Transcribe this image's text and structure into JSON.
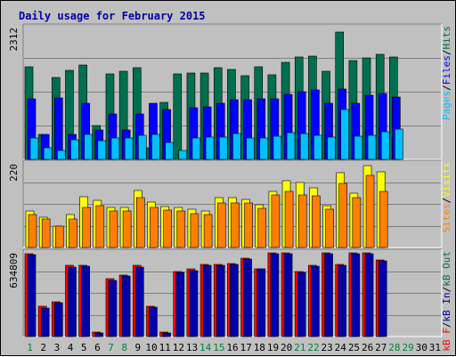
{
  "colors": {
    "background": "#c0c0c0",
    "title": "#0000aa",
    "hits": "#006f4f",
    "files": "#0000ff",
    "pages": "#00c0ff",
    "visits": "#ffff00",
    "sites": "#ff8000",
    "kbin": "#006f4f",
    "kbout": "#0000aa",
    "kbf": "#ff0000",
    "weekday_label": "#000000",
    "weekend_label": "#00803f"
  },
  "title": "Daily usage for February 2015",
  "panels": {
    "hits": {
      "max_label": "2312",
      "legend": [
        {
          "text": "Pages",
          "color": "#00c0ff"
        },
        {
          "text": "/",
          "color": "#000000"
        },
        {
          "text": "Files",
          "color": "#0000ff"
        },
        {
          "text": "/",
          "color": "#000000"
        },
        {
          "text": "Hits",
          "color": "#006f4f"
        }
      ]
    },
    "visits": {
      "max_label": "220",
      "legend": [
        {
          "text": "Sites",
          "color": "#ff8000"
        },
        {
          "text": "/",
          "color": "#000000"
        },
        {
          "text": "Visits",
          "color": "#ffff00"
        }
      ]
    },
    "kbytes": {
      "max_label": "634809",
      "legend": [
        {
          "text": "kB F",
          "color": "#ff0000"
        },
        {
          "text": "/",
          "color": "#000000"
        },
        {
          "text": "kB In",
          "color": "#0000aa"
        },
        {
          "text": "/",
          "color": "#000000"
        },
        {
          "text": "kB Out",
          "color": "#006f4f"
        }
      ]
    }
  },
  "chart_data": {
    "type": "bar",
    "title": "Daily usage for February 2015",
    "categories": [
      "1",
      "2",
      "3",
      "4",
      "5",
      "6",
      "7",
      "8",
      "9",
      "10",
      "11",
      "12",
      "13",
      "14",
      "15",
      "16",
      "17",
      "18",
      "19",
      "20",
      "21",
      "22",
      "23",
      "24",
      "25",
      "26",
      "27",
      "28",
      "29",
      "30",
      "31"
    ],
    "weekend_days": [
      1,
      7,
      8,
      14,
      15,
      21,
      22,
      28,
      29
    ],
    "hits_panel": {
      "ymax": 2312,
      "series": [
        {
          "name": "Hits",
          "values": [
            1630,
            430,
            1440,
            1560,
            1650,
            600,
            1500,
            1540,
            1610,
            210,
            1000,
            1500,
            1510,
            1520,
            1610,
            1570,
            1470,
            1620,
            1490,
            1710,
            1790,
            1810,
            1540,
            2230,
            1740,
            1780,
            1840,
            1790,
            0,
            0,
            0
          ]
        },
        {
          "name": "Files",
          "values": [
            1060,
            430,
            1080,
            430,
            980,
            510,
            790,
            510,
            800,
            980,
            880,
            0,
            900,
            920,
            980,
            1050,
            1050,
            1060,
            1060,
            1140,
            1180,
            1220,
            990,
            1230,
            980,
            1120,
            1160,
            1100,
            0,
            0,
            0
          ]
        },
        {
          "name": "Pages",
          "values": [
            370,
            210,
            160,
            340,
            430,
            330,
            380,
            380,
            420,
            430,
            300,
            150,
            370,
            390,
            390,
            450,
            380,
            370,
            410,
            470,
            450,
            420,
            390,
            880,
            410,
            420,
            480,
            530,
            0,
            0,
            0
          ]
        }
      ]
    },
    "visits_panel": {
      "ymax": 220,
      "series": [
        {
          "name": "Visits",
          "values": [
            95,
            80,
            56,
            86,
            134,
            123,
            106,
            106,
            150,
            119,
            108,
            105,
            100,
            95,
            130,
            130,
            127,
            112,
            148,
            176,
            171,
            156,
            110,
            197,
            143,
            215,
            198,
            0,
            0,
            0,
            0
          ]
        },
        {
          "name": "Sites",
          "values": [
            86,
            75,
            56,
            75,
            105,
            110,
            96,
            96,
            131,
            106,
            98,
            96,
            89,
            87,
            116,
            116,
            116,
            102,
            138,
            147,
            139,
            136,
            100,
            168,
            130,
            190,
            148,
            0,
            0,
            0,
            0
          ]
        }
      ]
    },
    "kbytes_panel": {
      "ymax": 634809,
      "series": [
        {
          "name": "kB F",
          "values": [
            627000,
            228000,
            262000,
            538000,
            543000,
            35000,
            436000,
            467000,
            538000,
            228000,
            32000,
            490000,
            510000,
            549000,
            550000,
            553000,
            592000,
            516000,
            634809,
            633000,
            490000,
            543000,
            634809,
            548000,
            634000,
            634809,
            584000,
            0,
            0,
            0,
            0
          ]
        },
        {
          "name": "kB Out",
          "values": [
            619000,
            219000,
            255000,
            529000,
            535000,
            28000,
            428000,
            460000,
            530000,
            222000,
            28000,
            483000,
            503000,
            541000,
            542000,
            545000,
            585000,
            510000,
            627000,
            625000,
            483000,
            535000,
            630000,
            540000,
            626000,
            630000,
            576000,
            0,
            0,
            0,
            0
          ]
        }
      ]
    }
  }
}
